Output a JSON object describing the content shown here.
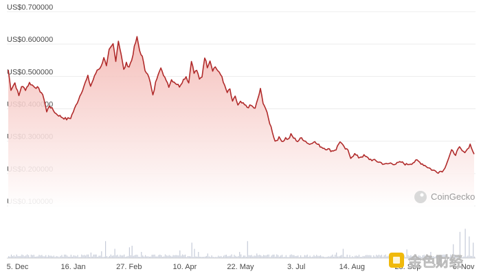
{
  "chart_data": {
    "type": "area",
    "colors": {
      "line": "#b02a2a",
      "fill_top": "#f3b5b0",
      "fill_bottom": "#ffffff",
      "volume": "#c5cbd8"
    },
    "y_ticks": [
      "US$0.700000",
      "US$0.600000",
      "US$0.500000",
      "US$0.400000",
      "US$0.300000",
      "US$0.200000",
      "US$0.100000"
    ],
    "y_tick_values": [
      0.7,
      0.6,
      0.5,
      0.4,
      0.3,
      0.2,
      0.1
    ],
    "ylim": [
      0.1,
      0.7
    ],
    "x_ticks": [
      "5. Dec",
      "16. Jan",
      "27. Feb",
      "10. Apr",
      "22. May",
      "3. Jul",
      "14. Aug",
      "25. Sep",
      "6. Nov"
    ],
    "x_tick_index": [
      7,
      49,
      91,
      133,
      175,
      217,
      259,
      301,
      343
    ],
    "grid": true,
    "price_keypoints": [
      [
        0,
        0.52
      ],
      [
        2,
        0.46
      ],
      [
        5,
        0.48
      ],
      [
        8,
        0.44
      ],
      [
        10,
        0.47
      ],
      [
        13,
        0.46
      ],
      [
        16,
        0.48
      ],
      [
        19,
        0.47
      ],
      [
        22,
        0.465
      ],
      [
        25,
        0.45
      ],
      [
        27,
        0.43
      ],
      [
        29,
        0.39
      ],
      [
        31,
        0.41
      ],
      [
        33,
        0.4
      ],
      [
        36,
        0.385
      ],
      [
        40,
        0.375
      ],
      [
        44,
        0.368
      ],
      [
        47,
        0.372
      ],
      [
        50,
        0.4
      ],
      [
        53,
        0.43
      ],
      [
        56,
        0.46
      ],
      [
        58,
        0.48
      ],
      [
        60,
        0.5
      ],
      [
        62,
        0.47
      ],
      [
        64,
        0.49
      ],
      [
        67,
        0.52
      ],
      [
        70,
        0.53
      ],
      [
        72,
        0.56
      ],
      [
        74,
        0.53
      ],
      [
        76,
        0.58
      ],
      [
        79,
        0.6
      ],
      [
        81,
        0.55
      ],
      [
        83,
        0.61
      ],
      [
        85,
        0.57
      ],
      [
        87,
        0.52
      ],
      [
        89,
        0.54
      ],
      [
        91,
        0.53
      ],
      [
        93,
        0.55
      ],
      [
        95,
        0.59
      ],
      [
        97,
        0.62
      ],
      [
        99,
        0.58
      ],
      [
        101,
        0.56
      ],
      [
        103,
        0.52
      ],
      [
        105,
        0.51
      ],
      [
        107,
        0.48
      ],
      [
        109,
        0.44
      ],
      [
        111,
        0.48
      ],
      [
        113,
        0.51
      ],
      [
        115,
        0.53
      ],
      [
        117,
        0.5
      ],
      [
        119,
        0.49
      ],
      [
        121,
        0.47
      ],
      [
        123,
        0.49
      ],
      [
        126,
        0.48
      ],
      [
        129,
        0.47
      ],
      [
        132,
        0.49
      ],
      [
        134,
        0.5
      ],
      [
        136,
        0.48
      ],
      [
        138,
        0.55
      ],
      [
        140,
        0.51
      ],
      [
        142,
        0.52
      ],
      [
        144,
        0.49
      ],
      [
        146,
        0.5
      ],
      [
        148,
        0.56
      ],
      [
        150,
        0.53
      ],
      [
        152,
        0.55
      ],
      [
        154,
        0.52
      ],
      [
        156,
        0.53
      ],
      [
        159,
        0.51
      ],
      [
        161,
        0.5
      ],
      [
        163,
        0.47
      ],
      [
        165,
        0.45
      ],
      [
        167,
        0.46
      ],
      [
        169,
        0.42
      ],
      [
        171,
        0.44
      ],
      [
        173,
        0.41
      ],
      [
        175,
        0.42
      ],
      [
        177,
        0.415
      ],
      [
        180,
        0.405
      ],
      [
        183,
        0.41
      ],
      [
        186,
        0.4
      ],
      [
        188,
        0.43
      ],
      [
        190,
        0.46
      ],
      [
        192,
        0.42
      ],
      [
        194,
        0.4
      ],
      [
        196,
        0.37
      ],
      [
        199,
        0.33
      ],
      [
        201,
        0.3
      ],
      [
        204,
        0.31
      ],
      [
        207,
        0.3
      ],
      [
        209,
        0.31
      ],
      [
        211,
        0.305
      ],
      [
        213,
        0.32
      ],
      [
        215,
        0.31
      ],
      [
        218,
        0.3
      ],
      [
        221,
        0.31
      ],
      [
        224,
        0.3
      ],
      [
        227,
        0.29
      ],
      [
        230,
        0.3
      ],
      [
        233,
        0.29
      ],
      [
        237,
        0.28
      ],
      [
        241,
        0.275
      ],
      [
        244,
        0.27
      ],
      [
        247,
        0.275
      ],
      [
        250,
        0.3
      ],
      [
        253,
        0.28
      ],
      [
        256,
        0.27
      ],
      [
        258,
        0.25
      ],
      [
        261,
        0.26
      ],
      [
        264,
        0.25
      ],
      [
        268,
        0.255
      ],
      [
        272,
        0.245
      ],
      [
        276,
        0.24
      ],
      [
        280,
        0.235
      ],
      [
        284,
        0.228
      ],
      [
        288,
        0.232
      ],
      [
        292,
        0.23
      ],
      [
        296,
        0.235
      ],
      [
        300,
        0.228
      ],
      [
        304,
        0.232
      ],
      [
        308,
        0.24
      ],
      [
        312,
        0.23
      ],
      [
        316,
        0.22
      ],
      [
        320,
        0.21
      ],
      [
        324,
        0.205
      ],
      [
        328,
        0.21
      ],
      [
        331,
        0.24
      ],
      [
        334,
        0.27
      ],
      [
        337,
        0.26
      ],
      [
        340,
        0.28
      ],
      [
        343,
        0.265
      ],
      [
        346,
        0.275
      ],
      [
        348,
        0.29
      ],
      [
        351,
        0.26
      ]
    ],
    "volume_spikes": [
      [
        14,
        0.12
      ],
      [
        40,
        0.1
      ],
      [
        62,
        0.18
      ],
      [
        70,
        0.22
      ],
      [
        73,
        0.55
      ],
      [
        80,
        0.3
      ],
      [
        91,
        0.35
      ],
      [
        93,
        0.4
      ],
      [
        100,
        0.2
      ],
      [
        118,
        0.12
      ],
      [
        129,
        0.25
      ],
      [
        138,
        0.5
      ],
      [
        140,
        0.3
      ],
      [
        143,
        0.2
      ],
      [
        150,
        0.15
      ],
      [
        168,
        0.12
      ],
      [
        174,
        0.2
      ],
      [
        180,
        0.55
      ],
      [
        187,
        0.15
      ],
      [
        213,
        0.12
      ],
      [
        230,
        0.1
      ],
      [
        247,
        0.18
      ],
      [
        252,
        0.3
      ],
      [
        270,
        0.1
      ],
      [
        300,
        0.28
      ],
      [
        318,
        0.2
      ],
      [
        335,
        0.45
      ],
      [
        340,
        0.85
      ],
      [
        344,
        0.95
      ],
      [
        347,
        0.7
      ],
      [
        350,
        0.5
      ]
    ],
    "watermark": "CoinGecko"
  },
  "corner_logo": "金色财经"
}
